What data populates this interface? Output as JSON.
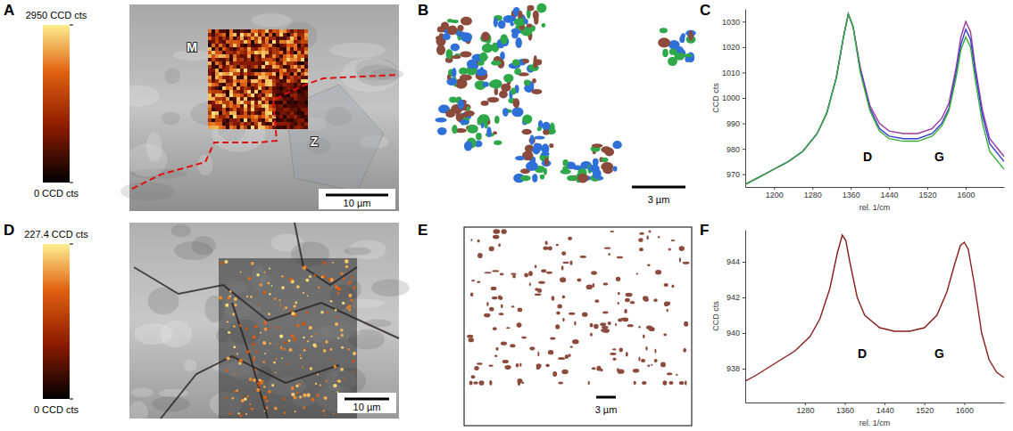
{
  "panels": {
    "A": {
      "letter": "A",
      "colorbar": {
        "range": [
          0,
          2950
        ],
        "ticks": [
          {
            "value": 2950,
            "label": "2950 CCD cts"
          },
          {
            "value": 0,
            "label": "0 CCD cts"
          }
        ]
      },
      "labels": [
        "M",
        "Z"
      ],
      "scale_bar": "10 µm"
    },
    "B": {
      "letter": "B",
      "scale_bar": "3 µm"
    },
    "D": {
      "letter": "D",
      "colorbar": {
        "range": [
          0,
          227.4
        ],
        "ticks": [
          {
            "value": 227.4,
            "label": "227.4 CCD cts"
          },
          {
            "value": 0,
            "label": "0 CCD cts"
          }
        ]
      },
      "scale_bar": "10 µm"
    },
    "E": {
      "letter": "E",
      "scale_bar": "3 µm"
    }
  },
  "chart_data": [
    {
      "panel": "C",
      "type": "line",
      "x_label": "rel. 1/cm",
      "y_label": "CCD cts",
      "x": [
        1140,
        1170,
        1200,
        1230,
        1260,
        1290,
        1310,
        1330,
        1345,
        1355,
        1365,
        1380,
        1400,
        1420,
        1440,
        1470,
        1500,
        1530,
        1550,
        1565,
        1580,
        1590,
        1600,
        1610,
        1620,
        1635,
        1650,
        1680
      ],
      "series": [
        {
          "color": "#9a3aa5",
          "values": [
            966,
            969,
            972,
            975,
            979,
            986,
            994,
            1008,
            1024,
            1033,
            1028,
            1012,
            997,
            990,
            987,
            986,
            986,
            988,
            992,
            998,
            1012,
            1024,
            1030,
            1026,
            1012,
            995,
            984,
            977
          ]
        },
        {
          "color": "#3b3bd6",
          "values": [
            966,
            969,
            972,
            975,
            979,
            986,
            994,
            1008,
            1024,
            1033,
            1028,
            1011,
            996,
            988,
            985,
            984,
            984,
            986,
            990,
            996,
            1010,
            1021,
            1027,
            1023,
            1010,
            993,
            982,
            975
          ]
        },
        {
          "color": "#35b035",
          "values": [
            966,
            969,
            972,
            975,
            979,
            986,
            994,
            1008,
            1024,
            1033,
            1028,
            1010,
            995,
            987,
            984,
            983,
            983,
            985,
            989,
            995,
            1008,
            1019,
            1024,
            1020,
            1007,
            990,
            979,
            972
          ]
        }
      ],
      "xlim": [
        1140,
        1680
      ],
      "xticks": [
        1200,
        1280,
        1360,
        1440,
        1520,
        1600
      ],
      "ylim": [
        965,
        1035
      ],
      "yticks": [
        970,
        980,
        990,
        1000,
        1010,
        1020,
        1030
      ],
      "annotations": [
        {
          "text": "D",
          "x": 1395,
          "y": 975
        },
        {
          "text": "G",
          "x": 1545,
          "y": 975
        }
      ]
    },
    {
      "panel": "F",
      "type": "line",
      "x_label": "rel. 1/cm",
      "y_label": "CCD cts",
      "x": [
        1160,
        1180,
        1220,
        1260,
        1290,
        1310,
        1330,
        1345,
        1355,
        1362,
        1370,
        1385,
        1400,
        1430,
        1460,
        1490,
        1520,
        1545,
        1565,
        1580,
        1592,
        1600,
        1608,
        1620,
        1635,
        1650,
        1665,
        1680
      ],
      "series": [
        {
          "color": "#8b1c1c",
          "values": [
            937.3,
            937.6,
            938.3,
            939.0,
            939.8,
            940.8,
            942.5,
            944.5,
            945.5,
            945.2,
            944.0,
            942.0,
            941.0,
            940.3,
            940.1,
            940.1,
            940.3,
            941.0,
            942.3,
            943.8,
            944.9,
            945.1,
            944.7,
            942.8,
            940.0,
            938.5,
            937.8,
            937.5
          ]
        }
      ],
      "xlim": [
        1160,
        1680
      ],
      "xticks": [
        1280,
        1360,
        1440,
        1520,
        1600
      ],
      "ylim": [
        936.1,
        945.8
      ],
      "yticks": [
        938,
        940,
        942,
        944
      ],
      "annotations": [
        {
          "text": "D",
          "x": 1395,
          "y": 938.6
        },
        {
          "text": "G",
          "x": 1550,
          "y": 938.6
        }
      ]
    }
  ]
}
